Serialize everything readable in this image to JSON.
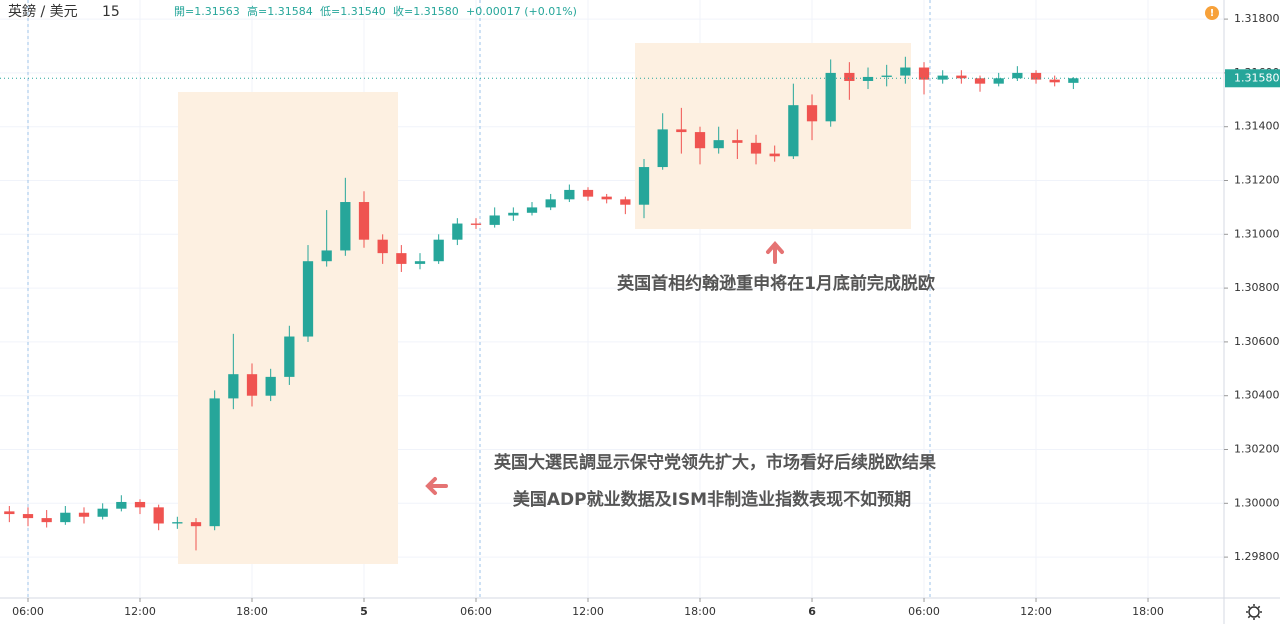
{
  "chart_data": {
    "type": "candlestick",
    "symbol": "英鎊 / 美元",
    "interval": "15",
    "header": {
      "open": "開=1.31563",
      "high": "高=1.31584",
      "low": "低=1.31540",
      "close": "收=1.31580",
      "change": "+0.00017 (+0.01%)"
    },
    "up_color": "#26a69a",
    "down_color": "#ef5350",
    "x": [
      5,
      6,
      7,
      8,
      9,
      10,
      11,
      12,
      13,
      14,
      15,
      16,
      17,
      18,
      19,
      20,
      21,
      22,
      23,
      24,
      25,
      26,
      27,
      28,
      29,
      30,
      31,
      32,
      33,
      34,
      35,
      36,
      37,
      38,
      39,
      40,
      41,
      42,
      43,
      44,
      45,
      46,
      47,
      48,
      49,
      50,
      51,
      52,
      53,
      54,
      55,
      56,
      57,
      58,
      59,
      60,
      61,
      62
    ],
    "open": [
      1.2997,
      1.2996,
      1.29945,
      1.2993,
      1.29965,
      1.2995,
      1.2998,
      1.30005,
      1.29985,
      1.29925,
      1.2993,
      1.29915,
      1.3039,
      1.3048,
      1.304,
      1.3047,
      1.3062,
      1.309,
      1.3094,
      1.3112,
      1.3098,
      1.3093,
      1.3089,
      1.309,
      1.3098,
      1.3104,
      1.31035,
      1.3107,
      1.3108,
      1.311,
      1.3113,
      1.31165,
      1.3114,
      1.3113,
      1.3111,
      1.3125,
      1.3139,
      1.3138,
      1.3132,
      1.3135,
      1.3134,
      1.313,
      1.3129,
      1.3148,
      1.3142,
      1.316,
      1.3157,
      1.31585,
      1.3159,
      1.3162,
      1.31575,
      1.3159,
      1.3158,
      1.3156,
      1.3158,
      1.316,
      1.31575,
      1.31563
    ],
    "high": [
      1.2999,
      1.29985,
      1.29975,
      1.2999,
      1.29985,
      1.3,
      1.3003,
      1.30015,
      1.29995,
      1.2995,
      1.29945,
      1.3042,
      1.3063,
      1.3052,
      1.305,
      1.3066,
      1.3096,
      1.3109,
      1.3121,
      1.3116,
      1.31,
      1.3096,
      1.3093,
      1.31,
      1.3106,
      1.3106,
      1.311,
      1.311,
      1.3112,
      1.3115,
      1.31185,
      1.31175,
      1.3115,
      1.3114,
      1.3128,
      1.3145,
      1.3147,
      1.314,
      1.314,
      1.3139,
      1.3137,
      1.3133,
      1.3156,
      1.3152,
      1.3165,
      1.3164,
      1.3162,
      1.3163,
      1.3166,
      1.3164,
      1.3161,
      1.3161,
      1.3159,
      1.316,
      1.31625,
      1.3161,
      1.3159,
      1.31584
    ],
    "low": [
      1.2993,
      1.29915,
      1.2991,
      1.2992,
      1.29925,
      1.2994,
      1.2997,
      1.2996,
      1.299,
      1.29905,
      1.29825,
      1.299,
      1.3035,
      1.3036,
      1.3038,
      1.3044,
      1.306,
      1.3088,
      1.3092,
      1.3095,
      1.3089,
      1.3086,
      1.3087,
      1.3089,
      1.3096,
      1.3102,
      1.31025,
      1.3105,
      1.3107,
      1.3109,
      1.3112,
      1.31125,
      1.31115,
      1.31075,
      1.3106,
      1.3124,
      1.313,
      1.3126,
      1.313,
      1.3128,
      1.3126,
      1.3127,
      1.3128,
      1.3135,
      1.314,
      1.315,
      1.3154,
      1.3155,
      1.3156,
      1.3152,
      1.3156,
      1.3156,
      1.3153,
      1.3155,
      1.3157,
      1.3156,
      1.3155,
      1.3154
    ],
    "close": [
      1.2996,
      1.29945,
      1.2993,
      1.29965,
      1.2995,
      1.2998,
      1.30005,
      1.29985,
      1.29925,
      1.2993,
      1.29915,
      1.3039,
      1.3048,
      1.304,
      1.3047,
      1.3062,
      1.309,
      1.3094,
      1.3112,
      1.3098,
      1.3093,
      1.3089,
      1.309,
      1.3098,
      1.3104,
      1.31035,
      1.3107,
      1.3108,
      1.311,
      1.3113,
      1.31165,
      1.3114,
      1.3113,
      1.3111,
      1.3125,
      1.3139,
      1.3138,
      1.3132,
      1.3135,
      1.3134,
      1.313,
      1.3129,
      1.3148,
      1.3142,
      1.316,
      1.3157,
      1.31585,
      1.3159,
      1.3162,
      1.31575,
      1.3159,
      1.3158,
      1.3156,
      1.3158,
      1.316,
      1.31575,
      1.31565,
      1.3158
    ],
    "xlim": [
      4.5,
      70.07
    ],
    "xticks": [
      {
        "value": 6,
        "label": "06:00"
      },
      {
        "value": 12,
        "label": "12:00"
      },
      {
        "value": 18,
        "label": "18:00"
      },
      {
        "value": 24,
        "label": "5"
      },
      {
        "value": 30,
        "label": "06:00"
      },
      {
        "value": 36,
        "label": "12:00"
      },
      {
        "value": 42,
        "label": "18:00"
      },
      {
        "value": 48,
        "label": "6"
      },
      {
        "value": 54,
        "label": "06:00"
      },
      {
        "value": 60,
        "label": "12:00"
      },
      {
        "value": 66,
        "label": "18:00"
      }
    ],
    "ylim": [
      1.29648,
      1.31871
    ],
    "yticks": [
      {
        "value": 1.298,
        "label": "1.29800"
      },
      {
        "value": 1.3,
        "label": "1.30000"
      },
      {
        "value": 1.302,
        "label": "1.30200"
      },
      {
        "value": 1.304,
        "label": "1.30400"
      },
      {
        "value": 1.306,
        "label": "1.30600"
      },
      {
        "value": 1.308,
        "label": "1.30800"
      },
      {
        "value": 1.31,
        "label": "1.31000"
      },
      {
        "value": 1.312,
        "label": "1.31200"
      },
      {
        "value": 1.314,
        "label": "1.31400"
      },
      {
        "value": 1.316,
        "label": "1.31600"
      },
      {
        "value": 1.318,
        "label": "1.31800"
      }
    ],
    "last_price": {
      "value": 1.3158,
      "label": "1.31580"
    },
    "grid": true,
    "annotations": [
      "英国首相约翰逊重申将在1月底前完成脱欧",
      "英国大選民調显示保守党领先扩大，市场看好后续脱欧结果",
      "美国ADP就业数据及ISM非制造业指数表现不如预期"
    ]
  }
}
